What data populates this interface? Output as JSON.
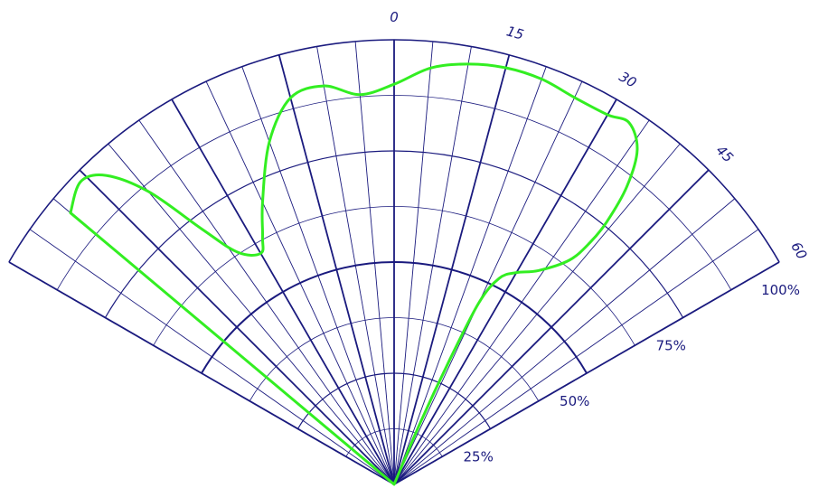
{
  "chart_data": {
    "type": "polar-line",
    "title": "",
    "angle_range_deg": [
      -60,
      60
    ],
    "angle_ticks": [
      {
        "angle": 0,
        "label": "0"
      },
      {
        "angle": 15,
        "label": "15"
      },
      {
        "angle": 30,
        "label": "30"
      },
      {
        "angle": 45,
        "label": "45"
      },
      {
        "angle": 60,
        "label": "60"
      }
    ],
    "radial_range": [
      0,
      100
    ],
    "radial_ticks": [
      {
        "value": 25,
        "label": "25%"
      },
      {
        "value": 50,
        "label": "50%"
      },
      {
        "value": 75,
        "label": "75%"
      },
      {
        "value": 100,
        "label": "100%"
      }
    ],
    "grid": true,
    "colors": {
      "grid": "#1a1a7e",
      "series": "#33ee22"
    },
    "series": [
      {
        "color": "#33ee22",
        "points": [
          {
            "angle": -50,
            "r": 95
          },
          {
            "angle": -46,
            "r": 98
          },
          {
            "angle": -43,
            "r": 95
          },
          {
            "angle": -40,
            "r": 86
          },
          {
            "angle": -37,
            "r": 72
          },
          {
            "angle": -34,
            "r": 63
          },
          {
            "angle": -30,
            "r": 60
          },
          {
            "angle": -28,
            "r": 63
          },
          {
            "angle": -25,
            "r": 70
          },
          {
            "angle": -20,
            "r": 82
          },
          {
            "angle": -15,
            "r": 90
          },
          {
            "angle": -10,
            "r": 91
          },
          {
            "angle": -5,
            "r": 88
          },
          {
            "angle": 0,
            "r": 90
          },
          {
            "angle": 5,
            "r": 94
          },
          {
            "angle": 10,
            "r": 96
          },
          {
            "angle": 15,
            "r": 97
          },
          {
            "angle": 20,
            "r": 97
          },
          {
            "angle": 25,
            "r": 96
          },
          {
            "angle": 30,
            "r": 96
          },
          {
            "angle": 33,
            "r": 97
          },
          {
            "angle": 36,
            "r": 93
          },
          {
            "angle": 38,
            "r": 85
          },
          {
            "angle": 39,
            "r": 76
          },
          {
            "angle": 39,
            "r": 70
          },
          {
            "angle": 38,
            "r": 64
          },
          {
            "angle": 34,
            "r": 58
          },
          {
            "angle": 30,
            "r": 55
          },
          {
            "angle": 27,
            "r": 52
          },
          {
            "angle": 25,
            "r": 45
          },
          {
            "angle": 24,
            "r": 30
          },
          {
            "angle": 23,
            "r": 15
          },
          {
            "angle": 0,
            "r": 0
          }
        ]
      }
    ]
  }
}
